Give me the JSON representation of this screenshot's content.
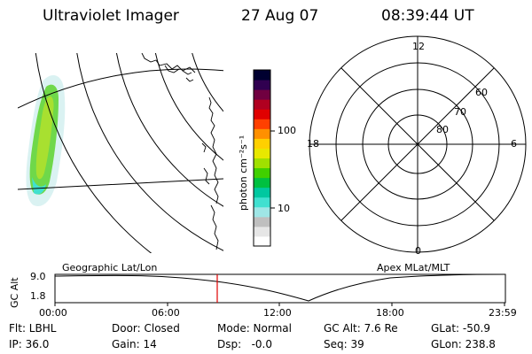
{
  "header": {
    "instrument": "Ultraviolet Imager",
    "date": "27 Aug 07",
    "time": "08:39:44 UT"
  },
  "colorbar": {
    "unit_label": "photon cm⁻²s⁻¹",
    "ticks": [
      "100",
      "10"
    ],
    "colors": [
      "#ffffff",
      "#e6e6e6",
      "#bfbfbf",
      "#9fe6e6",
      "#40e0d0",
      "#00c8a0",
      "#00c040",
      "#40d000",
      "#a0e000",
      "#e8e800",
      "#ffd000",
      "#ff9000",
      "#ff4000",
      "#e00000",
      "#b00020",
      "#700040",
      "#300050",
      "#000030"
    ]
  },
  "polar_plot": {
    "lat_labels": [
      "80",
      "70",
      "60"
    ],
    "mlt_labels": {
      "top": "12",
      "left": "18",
      "right": "6",
      "bottom": "0"
    }
  },
  "footer": {
    "left_label": "Geographic Lat/Lon",
    "right_label": "Apex MLat/MLT",
    "y_axis_label": "GC Alt",
    "y_ticks": [
      "9.0",
      "1.8"
    ],
    "x_ticks": [
      "00:00",
      "06:00",
      "12:00",
      "18:00",
      "23:59"
    ],
    "marker_color": "#e00000"
  },
  "status": {
    "filter": "Flt: LBHL",
    "door": "Door: Closed",
    "mode": "Mode: Normal",
    "gc_alt": "GC Alt: 7.6 Re",
    "glat": "GLat: -50.9",
    "ip": "IP: 36.0",
    "gain": "Gain: 14",
    "dsp": "Dsp:   -0.0",
    "seq": "Seq: 39",
    "glon": "GLon: 238.8"
  }
}
